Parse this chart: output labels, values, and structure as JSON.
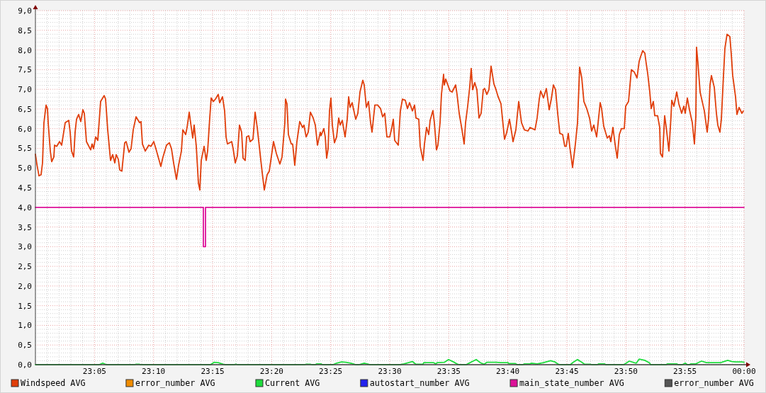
{
  "chart_data": {
    "type": "line",
    "xlim": [
      23,
      24
    ],
    "ylim": [
      0,
      9
    ],
    "xticks": [
      {
        "value": 23.08333,
        "label": "23:05"
      },
      {
        "value": 23.16667,
        "label": "23:10"
      },
      {
        "value": 23.25,
        "label": "23:15"
      },
      {
        "value": 23.33333,
        "label": "23:20"
      },
      {
        "value": 23.41667,
        "label": "23:25"
      },
      {
        "value": 23.5,
        "label": "23:30"
      },
      {
        "value": 23.58333,
        "label": "23:35"
      },
      {
        "value": 23.66667,
        "label": "23:40"
      },
      {
        "value": 23.75,
        "label": "23:45"
      },
      {
        "value": 23.83333,
        "label": "23:50"
      },
      {
        "value": 23.91667,
        "label": "23:55"
      },
      {
        "value": 24,
        "label": "00:00"
      }
    ],
    "yticks": [
      {
        "value": 0,
        "label": "0,0"
      },
      {
        "value": 0.5,
        "label": "0,5"
      },
      {
        "value": 1,
        "label": "1,0"
      },
      {
        "value": 1.5,
        "label": "1,5"
      },
      {
        "value": 2,
        "label": "2,0"
      },
      {
        "value": 2.5,
        "label": "2,5"
      },
      {
        "value": 3,
        "label": "3,0"
      },
      {
        "value": 3.5,
        "label": "3,5"
      },
      {
        "value": 4,
        "label": "4,0"
      },
      {
        "value": 4.5,
        "label": "4,5"
      },
      {
        "value": 5,
        "label": "5,0"
      },
      {
        "value": 5.5,
        "label": "5,5"
      },
      {
        "value": 6,
        "label": "6,0"
      },
      {
        "value": 6.5,
        "label": "6,5"
      },
      {
        "value": 7,
        "label": "7,0"
      },
      {
        "value": 7.5,
        "label": "7,5"
      },
      {
        "value": 8,
        "label": "8,0"
      },
      {
        "value": 8.5,
        "label": "8,5"
      },
      {
        "value": 9,
        "label": "9,0"
      }
    ],
    "grid": true,
    "legend": "bottom",
    "series": [
      {
        "name": "Windspeed AVG",
        "color": "#e03e0a",
        "x": [
          23.0,
          23.002,
          23.005,
          23.008,
          23.01,
          23.012,
          23.015,
          23.017,
          23.018,
          23.021,
          23.023,
          23.026,
          23.027,
          23.03,
          23.034,
          23.037,
          23.042,
          23.047,
          23.049,
          23.051,
          23.054,
          23.056,
          23.058,
          23.061,
          23.064,
          23.067,
          23.069,
          23.072,
          23.078,
          23.08,
          23.082,
          23.085,
          23.088,
          23.092,
          23.097,
          23.099,
          23.102,
          23.106,
          23.109,
          23.112,
          23.114,
          23.117,
          23.119,
          23.122,
          23.126,
          23.128,
          23.132,
          23.135,
          23.138,
          23.142,
          23.147,
          23.149,
          23.151,
          23.155,
          23.16,
          23.163,
          23.167,
          23.17,
          23.177,
          23.18,
          23.185,
          23.189,
          23.192,
          23.195,
          23.199,
          23.202,
          23.206,
          23.208,
          23.212,
          23.214,
          23.217,
          23.219,
          23.222,
          23.224,
          23.227,
          23.23,
          23.232,
          23.234,
          23.238,
          23.241,
          23.243,
          23.246,
          23.248,
          23.251,
          23.254,
          23.258,
          23.26,
          23.264,
          23.267,
          23.269,
          23.271,
          23.277,
          23.279,
          23.282,
          23.285,
          23.288,
          23.291,
          23.293,
          23.296,
          23.298,
          23.301,
          23.303,
          23.307,
          23.31,
          23.313,
          23.317,
          23.32,
          23.323,
          23.327,
          23.33,
          23.336,
          23.34,
          23.345,
          23.348,
          23.352,
          23.353,
          23.355,
          23.357,
          23.361,
          23.363,
          23.366,
          23.369,
          23.373,
          23.377,
          23.379,
          23.382,
          23.385,
          23.388,
          23.392,
          23.395,
          23.398,
          23.402,
          23.403,
          23.407,
          23.409,
          23.411,
          23.413,
          23.415,
          23.417,
          23.419,
          23.422,
          23.425,
          23.428,
          23.43,
          23.433,
          23.437,
          23.44,
          23.442,
          23.444,
          23.447,
          23.448,
          23.452,
          23.455,
          23.458,
          23.462,
          23.464,
          23.467,
          23.47,
          23.473,
          23.475,
          23.479,
          23.483,
          23.487,
          23.49,
          23.493,
          23.496,
          23.5,
          23.503,
          23.505,
          23.507,
          23.512,
          23.515,
          23.518,
          23.522,
          23.525,
          23.528,
          23.532,
          23.535,
          23.537,
          23.541,
          23.543,
          23.547,
          23.549,
          23.552,
          23.555,
          23.557,
          23.561,
          23.563,
          23.566,
          23.568,
          23.571,
          23.573,
          23.576,
          23.577,
          23.579,
          23.582,
          23.585,
          23.588,
          23.593,
          23.595,
          23.598,
          23.602,
          23.605,
          23.607,
          23.61,
          23.613,
          23.615,
          23.617,
          23.62,
          23.623,
          23.626,
          23.629,
          23.632,
          23.634,
          23.637,
          23.64,
          23.643,
          23.647,
          23.65,
          23.653,
          23.657,
          23.659,
          23.662,
          23.665,
          23.669,
          23.672,
          23.674,
          23.678,
          23.682,
          23.686,
          23.69,
          23.695,
          23.698,
          23.705,
          23.708,
          23.711,
          23.713,
          23.717,
          23.721,
          23.725,
          23.728,
          23.731,
          23.734,
          23.737,
          23.74,
          23.744,
          23.747,
          23.749,
          23.752,
          23.754,
          23.758,
          23.762,
          23.765,
          23.768,
          23.771,
          23.774,
          23.778,
          23.782,
          23.785,
          23.788,
          23.792,
          23.797,
          23.799,
          23.802,
          23.807,
          23.81,
          23.812,
          23.815,
          23.818,
          23.821,
          23.824,
          23.827,
          23.831,
          23.833,
          23.837,
          23.841,
          23.845,
          23.849,
          23.852,
          23.854,
          23.857,
          23.86,
          23.862,
          23.864,
          23.867,
          23.869,
          23.872,
          23.874,
          23.878,
          23.881,
          23.882,
          23.885,
          23.888,
          23.891,
          23.894,
          23.897,
          23.898,
          23.901,
          23.905,
          23.908,
          23.912,
          23.915,
          23.917,
          23.92,
          23.923,
          23.927,
          23.93,
          23.932,
          23.933,
          23.935,
          23.938,
          23.941,
          23.944,
          23.948,
          23.95,
          23.952,
          23.954,
          23.958,
          23.961,
          23.963,
          23.966,
          23.968,
          23.971,
          23.973,
          23.976,
          23.98,
          23.982,
          23.984,
          23.988,
          23.99,
          23.993,
          23.997,
          23.999
        ],
        "values": [
          5.35,
          5.1,
          4.8,
          4.83,
          5.13,
          6.15,
          6.6,
          6.51,
          6.15,
          5.43,
          5.16,
          5.28,
          5.58,
          5.55,
          5.67,
          5.58,
          6.15,
          6.21,
          5.91,
          5.43,
          5.28,
          5.91,
          6.24,
          6.36,
          6.18,
          6.48,
          6.39,
          5.67,
          5.46,
          5.61,
          5.49,
          5.79,
          5.7,
          6.69,
          6.84,
          6.75,
          5.97,
          5.19,
          5.34,
          5.13,
          5.34,
          5.22,
          4.95,
          4.92,
          5.64,
          5.67,
          5.4,
          5.49,
          5.97,
          6.3,
          6.15,
          6.18,
          5.61,
          5.43,
          5.58,
          5.55,
          5.67,
          5.49,
          5.04,
          5.28,
          5.58,
          5.64,
          5.49,
          5.13,
          4.71,
          5.07,
          5.43,
          5.97,
          5.85,
          6.03,
          6.42,
          6.15,
          5.76,
          6.09,
          5.55,
          4.62,
          4.44,
          5.19,
          5.55,
          5.19,
          5.43,
          6.27,
          6.78,
          6.69,
          6.75,
          6.87,
          6.66,
          6.81,
          6.45,
          5.79,
          5.61,
          5.67,
          5.49,
          5.13,
          5.31,
          6.09,
          5.91,
          5.25,
          5.19,
          5.79,
          5.82,
          5.67,
          5.73,
          6.42,
          6.03,
          5.37,
          4.89,
          4.44,
          4.83,
          4.92,
          5.67,
          5.37,
          5.1,
          5.28,
          6.15,
          6.75,
          6.63,
          5.85,
          5.61,
          5.61,
          5.07,
          5.67,
          6.18,
          6.03,
          6.09,
          5.79,
          5.91,
          6.42,
          6.27,
          6.09,
          5.58,
          5.91,
          5.82,
          6.0,
          5.79,
          5.25,
          5.49,
          6.45,
          6.78,
          6.09,
          5.64,
          5.79,
          6.27,
          6.09,
          6.21,
          5.79,
          6.24,
          6.81,
          6.54,
          6.66,
          6.57,
          6.24,
          6.39,
          6.93,
          7.23,
          7.11,
          6.54,
          6.69,
          6.15,
          5.91,
          6.6,
          6.6,
          6.51,
          6.3,
          6.39,
          5.79,
          5.79,
          6.03,
          6.24,
          5.7,
          5.58,
          6.45,
          6.75,
          6.72,
          6.51,
          6.66,
          6.45,
          6.6,
          6.27,
          6.24,
          5.55,
          5.19,
          5.61,
          6.03,
          5.85,
          6.21,
          6.46,
          6.15,
          5.46,
          5.58,
          6.15,
          6.87,
          7.38,
          7.11,
          7.26,
          7.11,
          6.96,
          6.93,
          7.11,
          6.87,
          6.39,
          5.97,
          5.61,
          6.15,
          6.57,
          7.08,
          7.53,
          6.99,
          7.17,
          6.99,
          6.27,
          6.39,
          6.99,
          7.02,
          6.87,
          6.99,
          7.59,
          7.14,
          6.99,
          6.81,
          6.63,
          6.27,
          5.73,
          5.9,
          6.24,
          5.91,
          5.67,
          5.97,
          6.69,
          6.15,
          5.97,
          5.94,
          6.03,
          5.97,
          6.27,
          6.75,
          6.96,
          6.78,
          7.02,
          6.48,
          6.75,
          7.11,
          6.99,
          6.39,
          5.88,
          5.85,
          5.55,
          5.55,
          5.88,
          5.55,
          5.01,
          5.61,
          6.15,
          7.56,
          7.29,
          6.69,
          6.51,
          6.27,
          5.94,
          6.09,
          5.79,
          6.66,
          6.51,
          6.06,
          5.76,
          5.82,
          5.67,
          6.03,
          5.61,
          5.25,
          5.85,
          6.0,
          6.0,
          6.57,
          6.69,
          7.5,
          7.44,
          7.29,
          7.71,
          7.83,
          7.98,
          7.92,
          7.65,
          7.41,
          6.93,
          6.51,
          6.69,
          6.33,
          6.33,
          6.03,
          5.37,
          5.28,
          6.33,
          5.91,
          5.43,
          6.33,
          6.72,
          6.57,
          6.93,
          6.63,
          6.39,
          6.57,
          6.39,
          6.78,
          6.48,
          6.15,
          5.61,
          6.33,
          8.07,
          7.65,
          6.93,
          6.69,
          6.45,
          5.91,
          6.27,
          7.11,
          7.35,
          7.05,
          6.39,
          6.09,
          5.91,
          6.24,
          7.35,
          8.04,
          8.4,
          8.34,
          7.89,
          7.35,
          6.81,
          6.36,
          6.54,
          6.39,
          6.45
        ]
      },
      {
        "name": "error_number AVG",
        "color": "#f08c00"
      },
      {
        "name": "Current AVG",
        "color": "#1ddc3c",
        "x": [
          23.0,
          23.09,
          23.095,
          23.1,
          23.14,
          23.142,
          23.147,
          23.148,
          23.247,
          23.252,
          23.258,
          23.265,
          23.267,
          23.281,
          23.282,
          23.283,
          23.285,
          23.38,
          23.382,
          23.388,
          23.39,
          23.395,
          23.397,
          23.403,
          23.405,
          23.42,
          23.425,
          23.432,
          23.438,
          23.445,
          23.45,
          23.452,
          23.457,
          23.464,
          23.47,
          23.472,
          23.515,
          23.52,
          23.532,
          23.537,
          23.547,
          23.548,
          23.562,
          23.565,
          23.567,
          23.577,
          23.583,
          23.59,
          23.596,
          23.598,
          23.608,
          23.61,
          23.622,
          23.628,
          23.633,
          23.637,
          23.65,
          23.657,
          23.667,
          23.668,
          23.677,
          23.68,
          23.688,
          23.69,
          23.698,
          23.7,
          23.708,
          23.717,
          23.727,
          23.733,
          23.738,
          23.74,
          23.755,
          23.758,
          23.765,
          23.772,
          23.775,
          23.783,
          23.785,
          23.793,
          23.795,
          23.803,
          23.805,
          23.83,
          23.833,
          23.838,
          23.845,
          23.848,
          23.852,
          23.86,
          23.867,
          23.868,
          23.89,
          23.892,
          23.905,
          23.907,
          23.913,
          23.917,
          23.92,
          23.923,
          23.925,
          23.932,
          23.935,
          23.94,
          23.947,
          23.967,
          23.97,
          23.977,
          23.983,
          23.988,
          23.997,
          24.0
        ],
        "values": [
          0,
          0,
          0.04,
          0,
          0,
          0.01,
          0.01,
          0,
          0,
          0.06,
          0.05,
          0.01,
          0,
          0,
          0.01,
          0.01,
          0,
          0,
          0.01,
          0.01,
          0,
          0,
          0.02,
          0.02,
          0,
          0,
          0.04,
          0.07,
          0.06,
          0.04,
          0.01,
          0,
          0,
          0.04,
          0.01,
          0,
          0,
          0.02,
          0.08,
          0.01,
          0.01,
          0.05,
          0.05,
          0.02,
          0.05,
          0.06,
          0.13,
          0.07,
          0.01,
          0,
          0,
          0.02,
          0.13,
          0.05,
          0.01,
          0.06,
          0.06,
          0.05,
          0.05,
          0.03,
          0.03,
          0,
          0,
          0.02,
          0.02,
          0.04,
          0.02,
          0.05,
          0.1,
          0.07,
          0.01,
          0,
          0,
          0.05,
          0.13,
          0.05,
          0.01,
          0.01,
          0,
          0,
          0.02,
          0.02,
          0,
          0,
          0.03,
          0.09,
          0.05,
          0.04,
          0.14,
          0.11,
          0.04,
          0,
          0,
          0.02,
          0.02,
          0,
          0,
          0.04,
          0,
          0,
          0.02,
          0.02,
          0.05,
          0.09,
          0.05,
          0.05,
          0.07,
          0.11,
          0.08,
          0.07,
          0.07,
          0.06
        ]
      },
      {
        "name": "autostart_number AVG",
        "color": "#2222ee"
      },
      {
        "name": "main_state_number AVG",
        "color": "#dd1199",
        "type": "step",
        "x": [
          23,
          23.237,
          23.24,
          24
        ],
        "values": [
          4,
          3,
          4,
          4
        ]
      },
      {
        "name": "error_number AVG",
        "color": "#555555"
      }
    ]
  }
}
